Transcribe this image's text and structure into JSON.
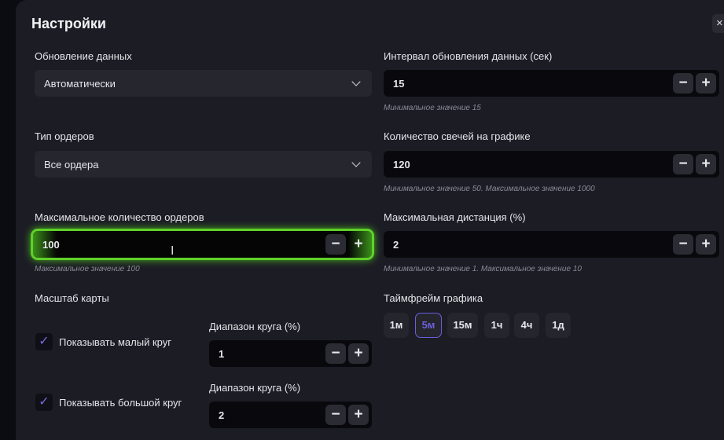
{
  "title": "Настройки",
  "close_icon": "×",
  "data_update": {
    "label": "Обновление данных",
    "value": "Автоматически"
  },
  "order_type": {
    "label": "Тип ордеров",
    "value": "Все ордера"
  },
  "max_orders": {
    "label": "Максимальное количество ордеров",
    "value": "100",
    "hint": "Максимальное значение 100"
  },
  "map_scale": {
    "label": "Масштаб карты"
  },
  "small_circle": {
    "checkbox_label": "Показывать малый круг",
    "checked": true,
    "range_label": "Диапазон круга (%)",
    "value": "1"
  },
  "big_circle": {
    "checkbox_label": "Показывать большой круг",
    "checked": true,
    "range_label": "Диапазон круга (%)",
    "value": "2"
  },
  "interval": {
    "label": "Интервал обновления данных (сек)",
    "value": "15",
    "hint": "Минимальное значение 15"
  },
  "candles": {
    "label": "Количество свечей на графике",
    "value": "120",
    "hint": "Минимальное значение 50. Максимальное значение 1000"
  },
  "max_distance": {
    "label": "Максимальная дистанция (%)",
    "value": "2",
    "hint": "Минимальное значение 1. Максимальное значение 10"
  },
  "timeframe": {
    "label": "Таймфрейм графика",
    "options": [
      "1м",
      "5м",
      "15м",
      "1ч",
      "4ч",
      "1д"
    ],
    "selected": "5м"
  },
  "stepper": {
    "minus": "−",
    "plus": "+"
  },
  "check_glyph": "✓",
  "colors": {
    "accent": "#6a5fd8",
    "focus": "#5fd12a",
    "panel": "#1c1c25"
  }
}
